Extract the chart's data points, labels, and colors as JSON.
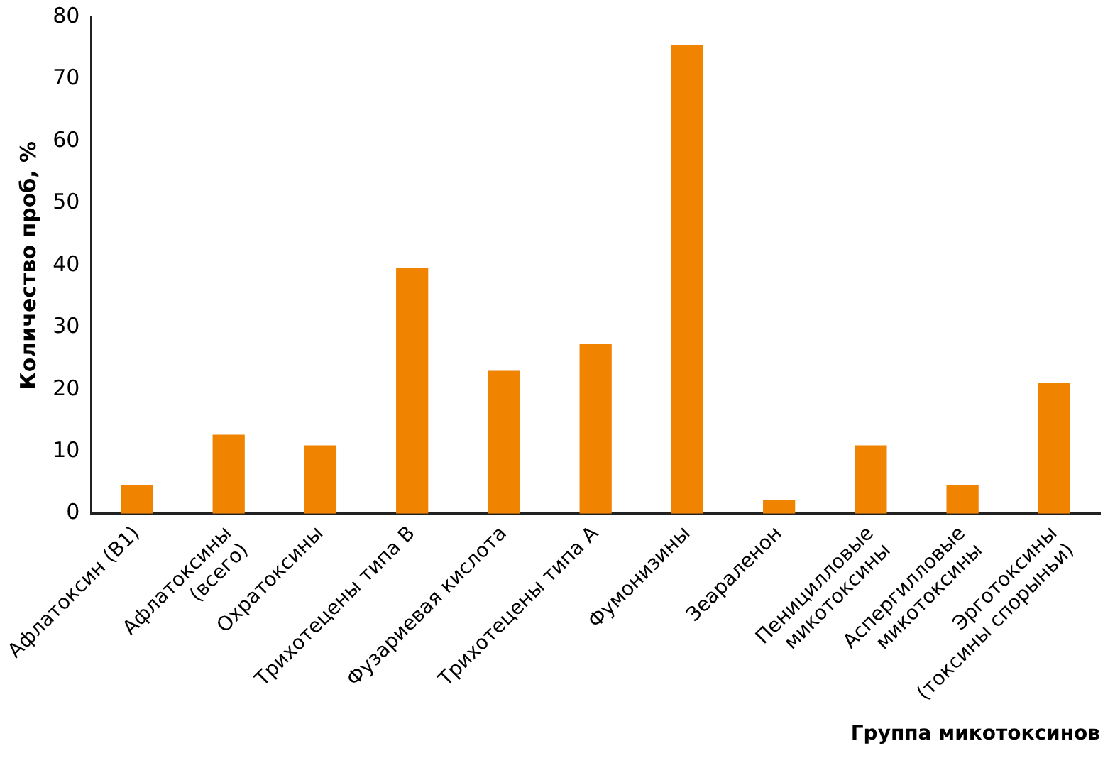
{
  "chart_data": {
    "type": "bar",
    "xlabel": "Группа микотоксинов",
    "ylabel": "Количество проб, %",
    "categories": [
      "Афлатоксин (В1)",
      "Афлатоксины\n(всего)",
      "Охратоксины",
      "Трихотецены типа В",
      "Фузариевая кислота",
      "Трихотецены типа А",
      "Фумонизины",
      "Зеараленон",
      "Пеницилловые\nмикотоксины",
      "Аспергилловые\nмикотоксины",
      "Эрготоксины\n(токсины спорыньи)"
    ],
    "values": [
      4.6,
      12.7,
      11,
      39.6,
      23,
      27.4,
      75.5,
      2.2,
      11,
      4.6,
      21
    ],
    "color": "#f08300",
    "ylim": [
      0,
      80
    ],
    "yticks": [
      0,
      10,
      20,
      30,
      40,
      50,
      60,
      70,
      80
    ],
    "grid": false,
    "legend": false
  }
}
